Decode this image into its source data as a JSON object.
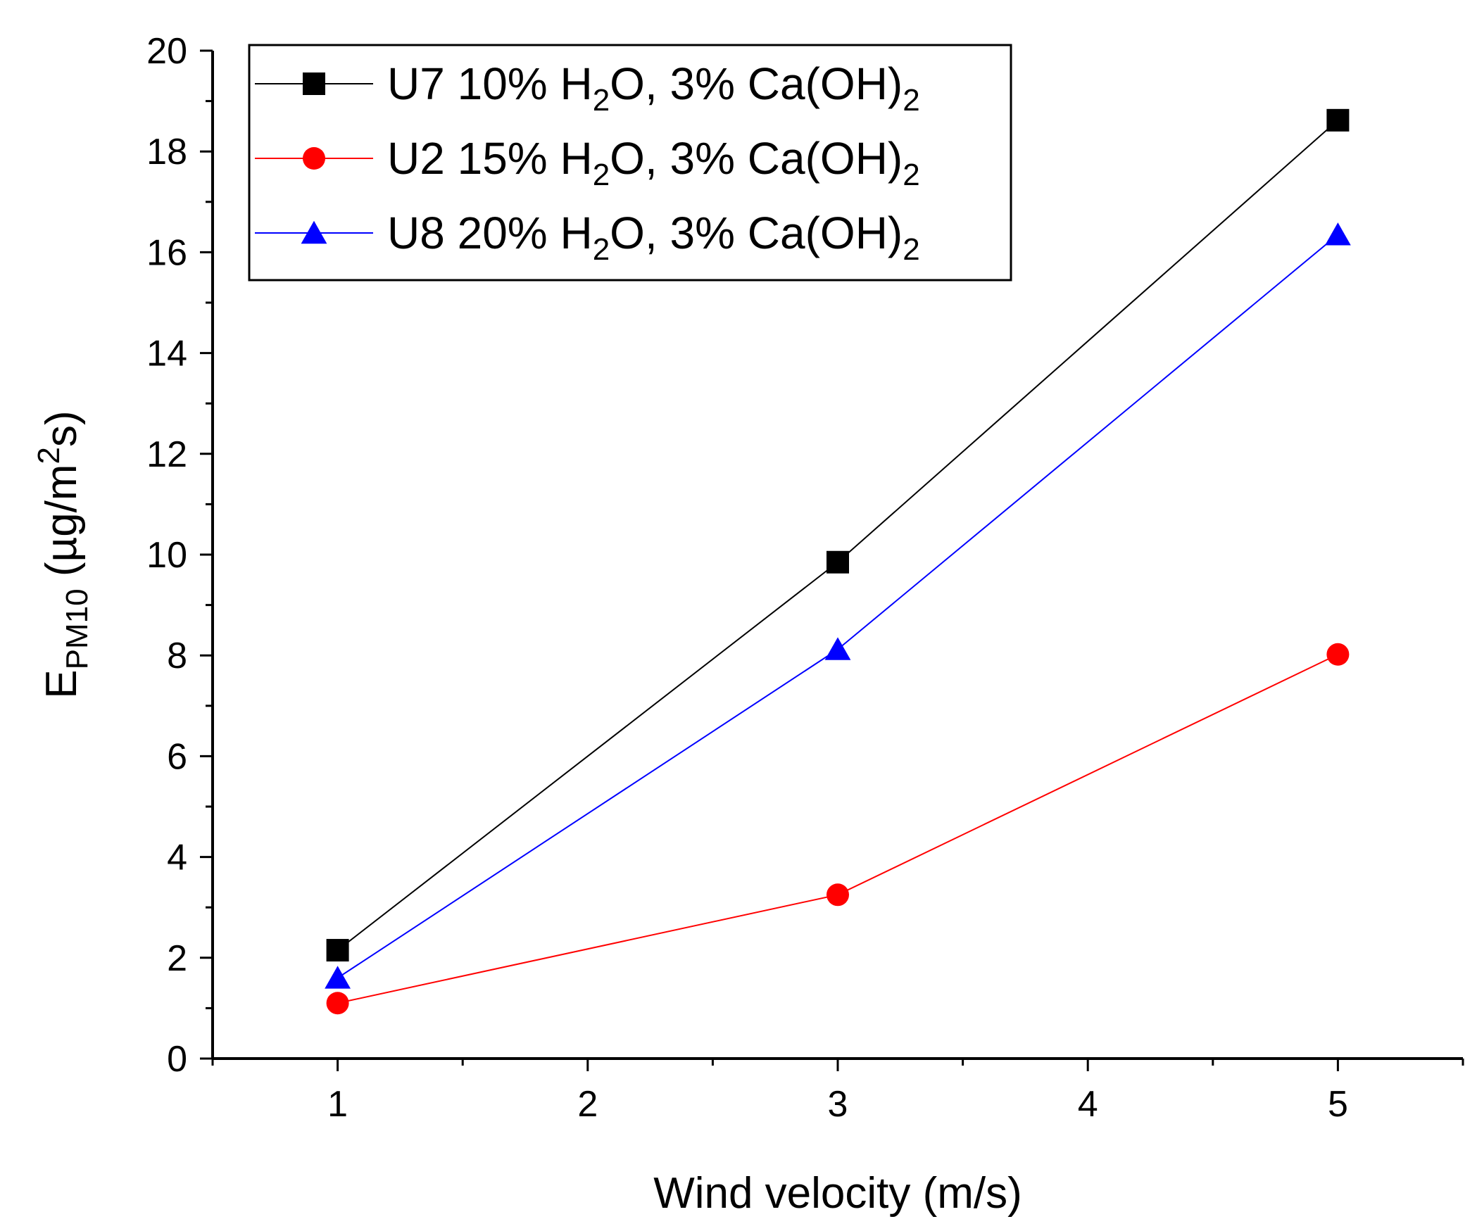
{
  "chart_data": {
    "type": "line",
    "title": "",
    "xlabel": "Wind velocity (m/s)",
    "ylabel": {
      "main": "E",
      "sub": "PM10",
      "unit_prefix": " (µg/m",
      "unit_sup": "2",
      "unit_suffix": "s)"
    },
    "xlim": [
      0.5,
      5.5
    ],
    "ylim": [
      0,
      20
    ],
    "x_ticks": [
      1,
      2,
      3,
      4,
      5
    ],
    "y_ticks": [
      0,
      2,
      4,
      6,
      8,
      10,
      12,
      14,
      16,
      18,
      20
    ],
    "grid": false,
    "legend_position": "top-left",
    "series": [
      {
        "name": "U7 10% H2O, 3% Ca(OH)2",
        "label_parts": {
          "a": "U7 10% H",
          "sub1": "2",
          "b": "O, 3% Ca(OH)",
          "sub2": "2"
        },
        "color": "#000000",
        "marker": "square",
        "x": [
          1,
          3,
          5
        ],
        "y": [
          2.15,
          9.85,
          18.62
        ]
      },
      {
        "name": "U2 15% H2O, 3% Ca(OH)2",
        "label_parts": {
          "a": "U2 15% H",
          "sub1": "2",
          "b": "O, 3% Ca(OH)",
          "sub2": "2"
        },
        "color": "#ff0000",
        "marker": "circle",
        "x": [
          1,
          3,
          5
        ],
        "y": [
          1.1,
          3.25,
          8.02
        ]
      },
      {
        "name": "U8 20% H2O, 3% Ca(OH)2",
        "label_parts": {
          "a": "U8 20% H",
          "sub1": "2",
          "b": "O, 3% Ca(OH)",
          "sub2": "2"
        },
        "color": "#0000ff",
        "marker": "triangle",
        "x": [
          1,
          3,
          5
        ],
        "y": [
          1.6,
          8.12,
          16.35
        ]
      }
    ]
  }
}
